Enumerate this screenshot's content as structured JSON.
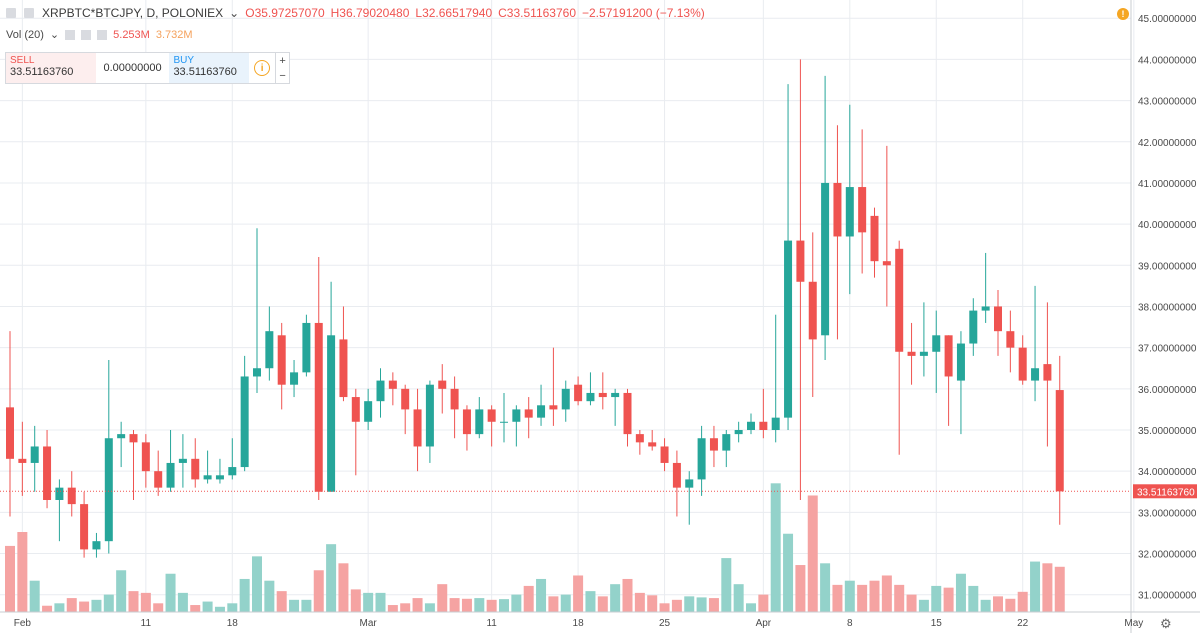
{
  "header": {
    "symbol": "XRPBTC*BTCJPY, D, POLONIEX",
    "open": "O35.97257070",
    "high": "H36.79020480",
    "low": "L32.66517940",
    "close": "C33.51163760",
    "change": "−2.57191200 (−7.13%)"
  },
  "volume_indicator": {
    "label": "Vol (20)",
    "value_a": "5.253M",
    "value_b": "3.732M"
  },
  "trade_panel": {
    "sell_label": "SELL",
    "sell_price": "33.51163760",
    "spread": "0.00000000",
    "buy_label": "BUY",
    "buy_price": "33.51163760",
    "info_symbol": "i",
    "plus": "+",
    "minus": "−"
  },
  "icons": [
    "warning-icon",
    "gear-icon",
    "chevron-down-icon",
    "info-icon"
  ],
  "colors": {
    "up": "#26a69a",
    "down": "#ef5350",
    "up_volume": "#93d2ca",
    "down_volume": "#f5a3a2",
    "grid": "#e9ecf0",
    "price_tag": "#ef5350"
  },
  "chart_data": {
    "type": "candlestick",
    "title": "XRPBTC*BTCJPY, D, POLONIEX",
    "ylim": [
      29.9,
      45.2
    ],
    "y_ticks": [
      "30.00000000",
      "31.00000000",
      "32.00000000",
      "33.00000000",
      "34.00000000",
      "35.00000000",
      "36.00000000",
      "37.00000000",
      "38.00000000",
      "39.00000000",
      "40.00000000",
      "41.00000000",
      "42.00000000",
      "43.00000000",
      "44.00000000",
      "45.00000000"
    ],
    "y_tick_values": [
      30,
      31,
      32,
      33,
      34,
      35,
      36,
      37,
      38,
      39,
      40,
      41,
      42,
      43,
      44,
      45
    ],
    "x_ticks": [
      {
        "label": "Feb",
        "index": 1
      },
      {
        "label": "11",
        "index": 11
      },
      {
        "label": "18",
        "index": 18
      },
      {
        "label": "Mar",
        "index": 29
      },
      {
        "label": "11",
        "index": 39
      },
      {
        "label": "18",
        "index": 46
      },
      {
        "label": "25",
        "index": 53
      },
      {
        "label": "Apr",
        "index": 61
      },
      {
        "label": "8",
        "index": 68
      },
      {
        "label": "15",
        "index": 75
      },
      {
        "label": "22",
        "index": 82
      },
      {
        "label": "May",
        "index": 91
      }
    ],
    "last_price": 33.5116376,
    "last_price_label": "33.51163760",
    "ohlc": [
      [
        35.55,
        37.4,
        32.9,
        34.3
      ],
      [
        34.3,
        35.2,
        33.4,
        34.2
      ],
      [
        34.2,
        35.1,
        33.5,
        34.6
      ],
      [
        34.6,
        35.0,
        33.1,
        33.3
      ],
      [
        33.3,
        33.8,
        32.3,
        33.6
      ],
      [
        33.6,
        34.0,
        32.9,
        33.2
      ],
      [
        33.2,
        33.5,
        31.9,
        32.1
      ],
      [
        32.1,
        32.5,
        31.9,
        32.3
      ],
      [
        32.3,
        36.7,
        32.0,
        34.8
      ],
      [
        34.8,
        35.2,
        34.1,
        34.9
      ],
      [
        34.9,
        35.0,
        33.3,
        34.7
      ],
      [
        34.7,
        34.9,
        33.6,
        34.0
      ],
      [
        34.0,
        34.5,
        33.4,
        33.6
      ],
      [
        33.6,
        35.0,
        33.5,
        34.2
      ],
      [
        34.2,
        34.9,
        33.6,
        34.3
      ],
      [
        34.3,
        34.8,
        33.6,
        33.8
      ],
      [
        33.8,
        34.5,
        33.7,
        33.9
      ],
      [
        33.8,
        34.3,
        33.7,
        33.9
      ],
      [
        33.9,
        34.8,
        33.8,
        34.1
      ],
      [
        34.1,
        36.8,
        34.0,
        36.3
      ],
      [
        36.3,
        39.9,
        35.9,
        36.5
      ],
      [
        36.5,
        38.0,
        36.2,
        37.4
      ],
      [
        37.3,
        37.6,
        35.5,
        36.1
      ],
      [
        36.1,
        36.7,
        35.8,
        36.4
      ],
      [
        36.4,
        37.8,
        36.3,
        37.6
      ],
      [
        37.6,
        39.2,
        33.3,
        33.5
      ],
      [
        33.5,
        38.6,
        33.5,
        37.3
      ],
      [
        37.2,
        38.0,
        35.7,
        35.8
      ],
      [
        35.8,
        36.0,
        33.9,
        35.2
      ],
      [
        35.2,
        36.0,
        35.0,
        35.7
      ],
      [
        35.7,
        36.5,
        35.3,
        36.2
      ],
      [
        36.2,
        36.4,
        35.6,
        36.0
      ],
      [
        36.0,
        36.1,
        34.9,
        35.5
      ],
      [
        35.5,
        36.0,
        34.0,
        34.6
      ],
      [
        34.6,
        36.2,
        34.2,
        36.1
      ],
      [
        36.2,
        36.6,
        35.4,
        36.0
      ],
      [
        36.0,
        36.3,
        34.8,
        35.5
      ],
      [
        35.5,
        35.6,
        34.5,
        34.9
      ],
      [
        34.9,
        35.8,
        34.8,
        35.5
      ],
      [
        35.5,
        35.6,
        34.6,
        35.2
      ],
      [
        35.2,
        35.9,
        34.7,
        35.2
      ],
      [
        35.2,
        35.6,
        34.6,
        35.5
      ],
      [
        35.5,
        35.8,
        34.8,
        35.3
      ],
      [
        35.3,
        36.1,
        35.1,
        35.6
      ],
      [
        35.6,
        37.0,
        35.1,
        35.5
      ],
      [
        35.5,
        36.2,
        35.2,
        36.0
      ],
      [
        36.1,
        36.3,
        35.6,
        35.7
      ],
      [
        35.7,
        36.4,
        35.6,
        35.9
      ],
      [
        35.9,
        36.4,
        35.5,
        35.8
      ],
      [
        35.8,
        36.0,
        35.1,
        35.9
      ],
      [
        35.9,
        36.0,
        34.6,
        34.9
      ],
      [
        34.9,
        35.0,
        34.4,
        34.7
      ],
      [
        34.7,
        35.0,
        34.5,
        34.6
      ],
      [
        34.6,
        34.8,
        34.0,
        34.2
      ],
      [
        34.2,
        34.5,
        32.9,
        33.6
      ],
      [
        33.6,
        34.0,
        32.7,
        33.8
      ],
      [
        33.8,
        35.1,
        33.4,
        34.8
      ],
      [
        34.8,
        35.1,
        34.1,
        34.5
      ],
      [
        34.5,
        35.0,
        34.1,
        34.9
      ],
      [
        34.9,
        35.2,
        34.7,
        35.0
      ],
      [
        35.0,
        35.4,
        34.9,
        35.2
      ],
      [
        35.2,
        36.0,
        34.8,
        35.0
      ],
      [
        35.0,
        37.8,
        34.7,
        35.3
      ],
      [
        35.3,
        43.4,
        35.0,
        39.6
      ],
      [
        39.6,
        44.0,
        33.3,
        38.6
      ],
      [
        38.6,
        39.8,
        35.8,
        37.2
      ],
      [
        37.3,
        43.6,
        36.7,
        41.0
      ],
      [
        41.0,
        42.4,
        37.2,
        39.7
      ],
      [
        39.7,
        42.9,
        38.3,
        40.9
      ],
      [
        40.9,
        42.3,
        38.8,
        39.8
      ],
      [
        40.2,
        40.4,
        38.7,
        39.1
      ],
      [
        39.1,
        41.9,
        38.0,
        39.0
      ],
      [
        39.4,
        39.6,
        34.4,
        36.9
      ],
      [
        36.9,
        37.6,
        36.1,
        36.8
      ],
      [
        36.8,
        38.1,
        36.3,
        36.9
      ],
      [
        36.9,
        37.9,
        35.9,
        37.3
      ],
      [
        37.3,
        37.3,
        35.1,
        36.3
      ],
      [
        36.2,
        37.4,
        34.9,
        37.1
      ],
      [
        37.1,
        38.2,
        36.8,
        37.9
      ],
      [
        37.9,
        39.3,
        37.6,
        38.0
      ],
      [
        38.0,
        38.4,
        36.8,
        37.4
      ],
      [
        37.4,
        37.9,
        36.4,
        37.0
      ],
      [
        37.0,
        37.3,
        36.1,
        36.2
      ],
      [
        36.2,
        38.5,
        35.7,
        36.5
      ],
      [
        36.6,
        38.1,
        34.6,
        36.2
      ],
      [
        35.97,
        36.8,
        32.7,
        33.51
      ]
    ],
    "volume": [
      1.9,
      2.3,
      0.9,
      0.18,
      0.25,
      0.4,
      0.3,
      0.35,
      0.5,
      1.2,
      0.6,
      0.55,
      0.25,
      1.1,
      0.55,
      0.2,
      0.3,
      0.15,
      0.25,
      0.95,
      1.6,
      0.9,
      0.6,
      0.35,
      0.35,
      1.2,
      1.95,
      1.4,
      0.65,
      0.55,
      0.55,
      0.2,
      0.25,
      0.4,
      0.25,
      0.8,
      0.4,
      0.38,
      0.4,
      0.35,
      0.37,
      0.5,
      0.75,
      0.95,
      0.45,
      0.5,
      1.05,
      0.6,
      0.45,
      0.8,
      0.95,
      0.55,
      0.48,
      0.25,
      0.35,
      0.45,
      0.42,
      0.4,
      1.55,
      0.8,
      0.25,
      0.5,
      3.7,
      2.25,
      1.35,
      3.35,
      1.4,
      0.78,
      0.9,
      0.78,
      0.9,
      1.05,
      0.78,
      0.5,
      0.35,
      0.75,
      0.7,
      1.1,
      0.75,
      0.35,
      0.45,
      0.38,
      0.58,
      1.45,
      1.4,
      1.3
    ],
    "volume_max": 4.6
  }
}
